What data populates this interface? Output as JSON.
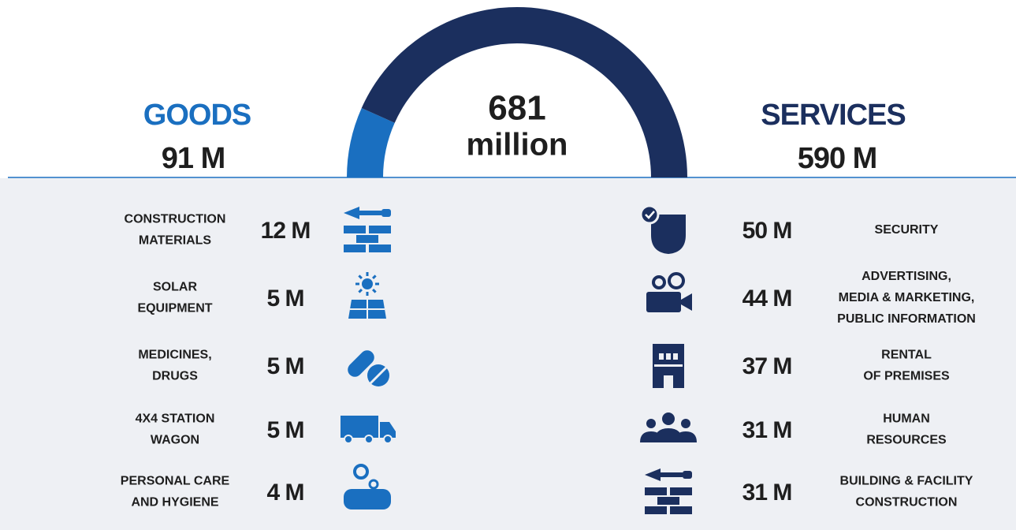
{
  "total": {
    "value": "681",
    "unit": "million"
  },
  "goods": {
    "title": "GOODS",
    "total": "91 M",
    "value": 91,
    "items": [
      {
        "label": [
          "CONSTRUCTION",
          "MATERIALS"
        ],
        "value": "12 M"
      },
      {
        "label": [
          "SOLAR",
          "EQUIPMENT"
        ],
        "value": "5 M"
      },
      {
        "label": [
          "MEDICINES,",
          "DRUGS"
        ],
        "value": "5 M"
      },
      {
        "label": [
          "4X4 STATION",
          "WAGON"
        ],
        "value": "5 M"
      },
      {
        "label": [
          "PERSONAL CARE",
          "AND HYGIENE"
        ],
        "value": "4 M"
      }
    ]
  },
  "services": {
    "title": "SERVICES",
    "total": "590 M",
    "value": 590,
    "items": [
      {
        "label": [
          "SECURITY"
        ],
        "value": "50 M"
      },
      {
        "label": [
          "ADVERTISING,",
          "MEDIA & MARKETING,",
          "PUBLIC INFORMATION"
        ],
        "value": "44 M"
      },
      {
        "label": [
          "RENTAL",
          "OF PREMISES"
        ],
        "value": "37 M"
      },
      {
        "label": [
          "HUMAN",
          "RESOURCES"
        ],
        "value": "31 M"
      },
      {
        "label": [
          "BUILDING & FACILITY",
          "CONSTRUCTION"
        ],
        "value": "31 M"
      }
    ]
  }
}
